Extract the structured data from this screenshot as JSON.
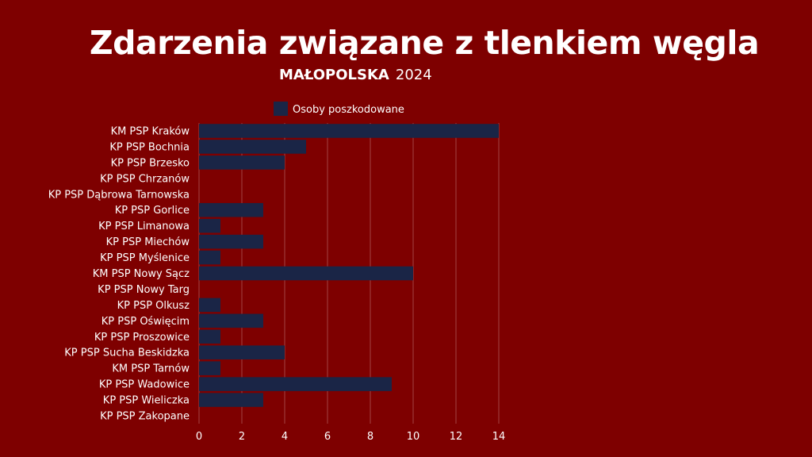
{
  "colors": {
    "background": "#7e0000",
    "bar": "#1a2546",
    "grid": "#a24545",
    "text": "#ffffff"
  },
  "chart_data": {
    "type": "bar",
    "orientation": "horizontal",
    "title": "Zdarzenia związane z tlenkiem węgla",
    "subtitle_region": "MAŁOPOLSKA",
    "subtitle_year": "2024",
    "legend_position": "top",
    "grid": true,
    "xlim": [
      0,
      14
    ],
    "xticks": [
      "0",
      "2",
      "4",
      "6",
      "8",
      "10",
      "12",
      "14"
    ],
    "categories": [
      "KM PSP Kraków",
      "KP PSP Bochnia",
      "KP PSP Brzesko",
      "KP PSP Chrzanów",
      "KP PSP Dąbrowa Tarnowska",
      "KP PSP Gorlice",
      "KP PSP Limanowa",
      "KP PSP Miechów",
      "KP PSP Myślenice",
      "KM PSP Nowy Sącz",
      "KP PSP Nowy Targ",
      "KP PSP Olkusz",
      "KP PSP Oświęcim",
      "KP PSP Proszowice",
      "KP PSP Sucha Beskidzka",
      "KM PSP Tarnów",
      "KP PSP Wadowice",
      "KP PSP Wieliczka",
      "KP PSP Zakopane"
    ],
    "series": [
      {
        "name": "Osoby poszkodowane",
        "color": "#1a2546",
        "values": [
          14,
          5,
          4,
          0,
          0,
          3,
          1,
          3,
          1,
          10,
          0,
          1,
          3,
          1,
          4,
          1,
          9,
          3,
          0
        ]
      }
    ]
  }
}
